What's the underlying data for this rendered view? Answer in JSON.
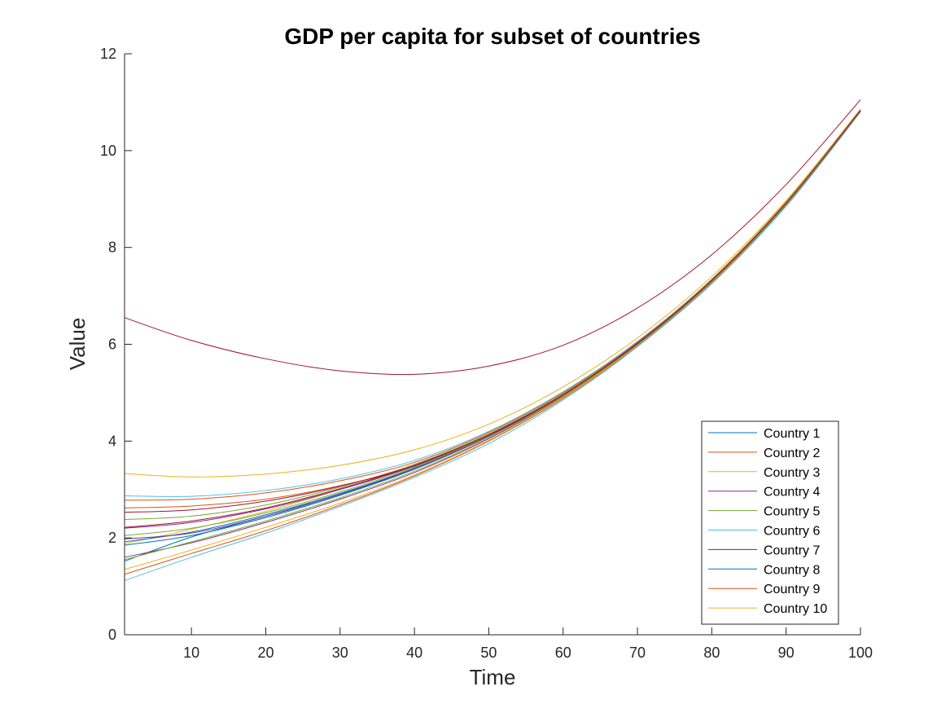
{
  "chart_data": {
    "type": "line",
    "title": "GDP per capita for subset of countries",
    "xlabel": "Time",
    "ylabel": "Value",
    "xlim": [
      1,
      100
    ],
    "ylim": [
      0,
      12
    ],
    "xticks": [
      10,
      20,
      30,
      40,
      50,
      60,
      70,
      80,
      90,
      100
    ],
    "yticks": [
      0,
      2,
      4,
      6,
      8,
      10,
      12
    ],
    "grid": false,
    "legend_position": "bottom-right",
    "series": [
      {
        "name": "Country 1",
        "color": "#0072BD",
        "x": [
          1,
          10,
          20,
          30,
          40,
          50,
          60,
          70,
          80,
          90,
          100
        ],
        "y": [
          1.52,
          2.02,
          2.45,
          2.9,
          3.43,
          4.1,
          4.95,
          6.0,
          7.3,
          8.9,
          10.85
        ]
      },
      {
        "name": "Country 2",
        "color": "#D95319",
        "x": [
          1,
          10,
          20,
          30,
          40,
          50,
          60,
          70,
          80,
          90,
          100
        ],
        "y": [
          2.62,
          2.66,
          2.8,
          3.08,
          3.48,
          4.1,
          4.95,
          6.0,
          7.3,
          8.9,
          10.82
        ]
      },
      {
        "name": "Country 3",
        "color": "#EDB120",
        "x": [
          1,
          10,
          20,
          30,
          40,
          50,
          60,
          70,
          80,
          90,
          100
        ],
        "y": [
          1.88,
          2.18,
          2.55,
          3.0,
          3.5,
          4.15,
          4.98,
          6.05,
          7.35,
          8.95,
          10.85
        ]
      },
      {
        "name": "Country 4",
        "color": "#7E2F8E",
        "x": [
          1,
          10,
          20,
          30,
          40,
          50,
          60,
          70,
          80,
          90,
          100
        ],
        "y": [
          2.2,
          2.32,
          2.6,
          3.0,
          3.48,
          4.12,
          4.95,
          6.02,
          7.32,
          8.92,
          10.83
        ]
      },
      {
        "name": "Country 5",
        "color": "#77AC30",
        "x": [
          1,
          10,
          20,
          30,
          40,
          50,
          60,
          70,
          80,
          90,
          100
        ],
        "y": [
          2.38,
          2.45,
          2.68,
          3.05,
          3.52,
          4.15,
          4.97,
          6.03,
          7.33,
          8.93,
          10.84
        ]
      },
      {
        "name": "Country 6",
        "color": "#4DBEEE",
        "x": [
          1,
          10,
          20,
          30,
          40,
          50,
          60,
          70,
          80,
          90,
          100
        ],
        "y": [
          1.12,
          1.6,
          2.1,
          2.65,
          3.25,
          3.95,
          4.85,
          5.95,
          7.25,
          8.85,
          10.8
        ]
      },
      {
        "name": "Country 7",
        "color": "#A2142F",
        "x": [
          1,
          10,
          20,
          30,
          40,
          50,
          60,
          70,
          80,
          90,
          100
        ],
        "y": [
          6.55,
          6.08,
          5.7,
          5.45,
          5.38,
          5.55,
          5.98,
          6.75,
          7.85,
          9.3,
          11.05
        ]
      },
      {
        "name": "Country 8",
        "color": "#0072BD",
        "x": [
          1,
          10,
          20,
          30,
          40,
          50,
          60,
          70,
          80,
          90,
          100
        ],
        "y": [
          1.85,
          2.05,
          2.42,
          2.88,
          3.42,
          4.1,
          4.95,
          6.0,
          7.3,
          8.9,
          10.82
        ]
      },
      {
        "name": "Country 9",
        "color": "#D95319",
        "x": [
          1,
          10,
          20,
          30,
          40,
          50,
          60,
          70,
          80,
          90,
          100
        ],
        "y": [
          1.25,
          1.68,
          2.15,
          2.68,
          3.28,
          4.0,
          4.88,
          5.97,
          7.27,
          8.88,
          10.81
        ]
      },
      {
        "name": "Country 10",
        "color": "#EDB120",
        "x": [
          1,
          10,
          20,
          30,
          40,
          50,
          60,
          70,
          80,
          90,
          100
        ],
        "y": [
          3.33,
          3.26,
          3.32,
          3.5,
          3.82,
          4.35,
          5.12,
          6.13,
          7.4,
          8.97,
          10.86
        ]
      },
      {
        "color": "#7E2F8E",
        "x": [
          1,
          10,
          20,
          30,
          40,
          50,
          60,
          70,
          80,
          90,
          100
        ],
        "y": [
          1.6,
          1.9,
          2.32,
          2.8,
          3.35,
          4.05,
          4.92,
          5.98,
          7.28,
          8.88,
          10.81
        ]
      },
      {
        "color": "#77AC30",
        "x": [
          1,
          10,
          20,
          30,
          40,
          50,
          60,
          70,
          80,
          90,
          100
        ],
        "y": [
          2.05,
          2.2,
          2.52,
          2.95,
          3.46,
          4.12,
          4.96,
          6.02,
          7.32,
          8.92,
          10.83
        ]
      },
      {
        "color": "#4DBEEE",
        "x": [
          1,
          10,
          20,
          30,
          40,
          50,
          60,
          70,
          80,
          90,
          100
        ],
        "y": [
          2.87,
          2.86,
          2.98,
          3.22,
          3.6,
          4.2,
          5.02,
          6.06,
          7.34,
          8.93,
          10.84
        ]
      },
      {
        "color": "#A2142F",
        "x": [
          1,
          10,
          20,
          30,
          40,
          50,
          60,
          70,
          80,
          90,
          100
        ],
        "y": [
          2.22,
          2.35,
          2.62,
          3.02,
          3.5,
          4.13,
          4.96,
          6.02,
          7.32,
          8.92,
          10.83
        ]
      },
      {
        "color": "#0072BD",
        "x": [
          1,
          10,
          20,
          30,
          40,
          50,
          60,
          70,
          80,
          90,
          100
        ],
        "y": [
          1.92,
          2.12,
          2.48,
          2.92,
          3.44,
          4.1,
          4.95,
          6.0,
          7.3,
          8.9,
          10.82
        ]
      },
      {
        "color": "#D95319",
        "x": [
          1,
          10,
          20,
          30,
          40,
          50,
          60,
          70,
          80,
          90,
          100
        ],
        "y": [
          2.78,
          2.8,
          2.93,
          3.18,
          3.56,
          4.18,
          5.0,
          6.04,
          7.33,
          8.92,
          10.83
        ]
      },
      {
        "color": "#EDB120",
        "x": [
          1,
          10,
          20,
          30,
          40,
          50,
          60,
          70,
          80,
          90,
          100
        ],
        "y": [
          1.35,
          1.75,
          2.22,
          2.72,
          3.3,
          4.02,
          4.9,
          5.98,
          7.28,
          8.89,
          10.82
        ]
      },
      {
        "color": "#7E2F8E",
        "x": [
          1,
          10,
          20,
          30,
          40,
          50,
          60,
          70,
          80,
          90,
          100
        ],
        "y": [
          1.98,
          2.1,
          2.45,
          2.9,
          3.43,
          4.1,
          4.95,
          6.0,
          7.3,
          8.9,
          10.82
        ]
      },
      {
        "color": "#77AC30",
        "x": [
          1,
          10,
          20,
          30,
          40,
          50,
          60,
          70,
          80,
          90,
          100
        ],
        "y": [
          1.55,
          1.92,
          2.35,
          2.83,
          3.38,
          4.07,
          4.93,
          5.99,
          7.29,
          8.89,
          10.82
        ]
      },
      {
        "color": "#A2142F",
        "x": [
          1,
          10,
          20,
          30,
          40,
          50,
          60,
          70,
          80,
          90,
          100
        ],
        "y": [
          2.53,
          2.58,
          2.76,
          3.07,
          3.5,
          4.13,
          4.96,
          6.02,
          7.32,
          8.92,
          10.83
        ]
      }
    ]
  }
}
